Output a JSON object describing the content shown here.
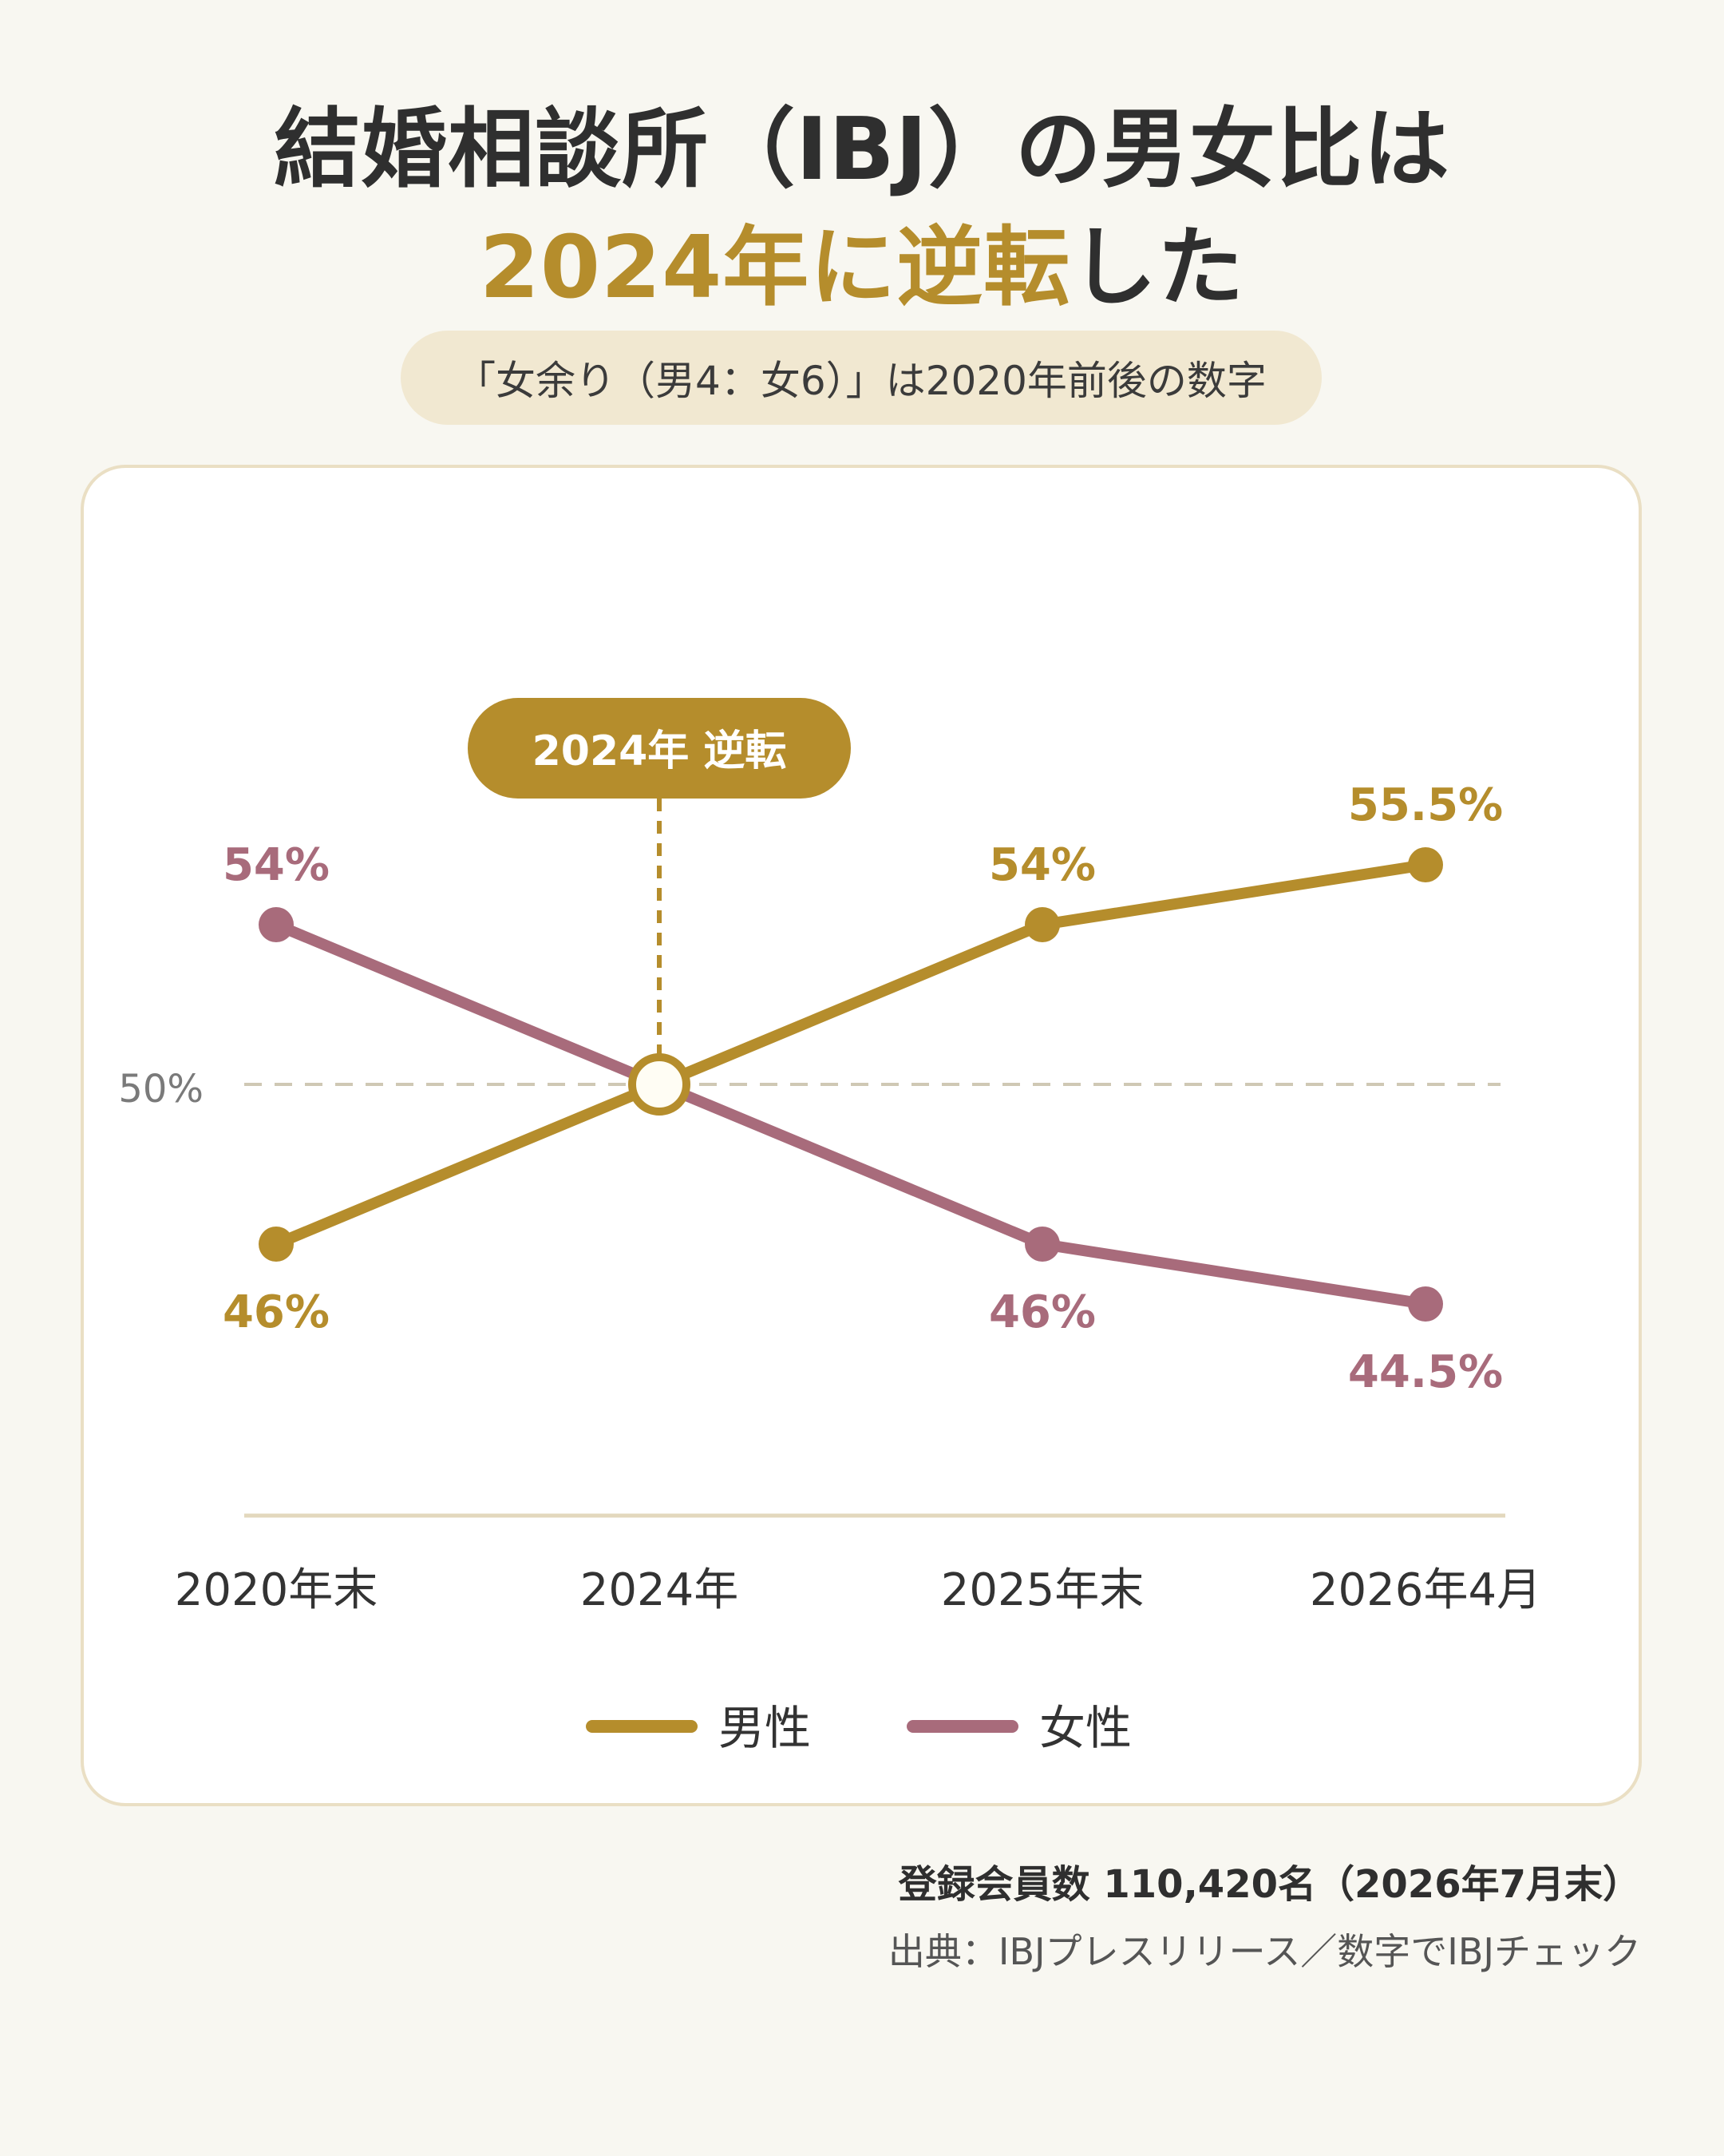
{
  "header": {
    "title_line1": "結婚相談所（IBJ）の男女比は",
    "title_line2_accent": "2024年に逆転",
    "title_line2_rest": "した",
    "subtitle": "「女余り（男4：女6）」は2020年前後の数字"
  },
  "colors": {
    "male": "#b58d2c",
    "female": "#a86b7b",
    "background": "#f8f7f1",
    "pill": "#f1e8d1",
    "card_border": "#eadfc4",
    "reference_line": "#cfc8b4"
  },
  "chart_data": {
    "type": "line",
    "x": [
      "2020年末",
      "2024年",
      "2025年末",
      "2026年4月"
    ],
    "ylim": [
      40,
      60
    ],
    "reference_line": {
      "value": 50,
      "label": "50%"
    },
    "series": [
      {
        "name": "男性",
        "values": [
          46,
          50,
          54,
          55.5
        ],
        "labels": [
          "46%",
          "",
          "54%",
          "55.5%"
        ]
      },
      {
        "name": "女性",
        "values": [
          54,
          50,
          46,
          44.5
        ],
        "labels": [
          "54%",
          "",
          "46%",
          "44.5%"
        ]
      }
    ],
    "annotation": {
      "x_index": 1,
      "text": "2024年 逆転"
    },
    "legend_position": "bottom"
  },
  "footer": {
    "members": "登録会員数 110,420名（2026年7月末）",
    "source": "出典：IBJプレスリリース／数字でIBJチェック"
  }
}
